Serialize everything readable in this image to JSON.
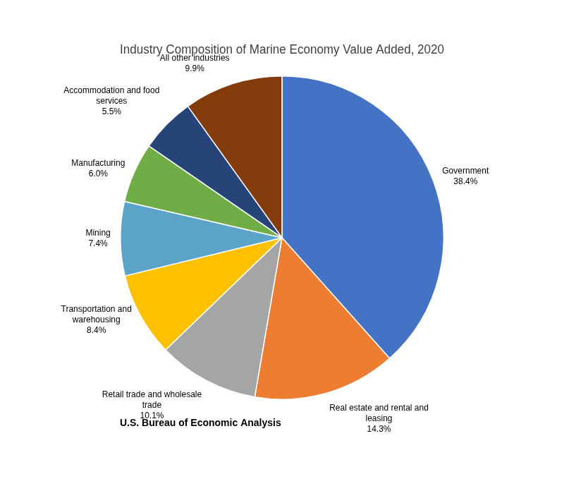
{
  "chart_data": {
    "type": "pie",
    "title": "Industry Composition of Marine Economy Value Added, 2020",
    "categories": [
      "Government",
      "Real estate and rental and\nleasing",
      "Retail trade and wholesale\ntrade",
      "Transportation and\nwarehousing",
      "Mining",
      "Manufacturing",
      "Accommodation and food\nservices",
      "All other industries"
    ],
    "values": [
      38.4,
      14.3,
      10.1,
      8.4,
      7.4,
      6.0,
      5.5,
      9.9
    ],
    "value_labels": [
      "38.4%",
      "14.3%",
      "10.1%",
      "8.4%",
      "7.4%",
      "6.0%",
      "5.5%",
      "9.9%"
    ],
    "data_labels": true,
    "colors": [
      "#4472C4",
      "#ED7D31",
      "#A5A5A5",
      "#FFC000",
      "#5BA3C9",
      "#70AD47",
      "#264478",
      "#843C0C"
    ],
    "annotations": [
      "U.S. Bureau of Economic Analysis"
    ]
  }
}
